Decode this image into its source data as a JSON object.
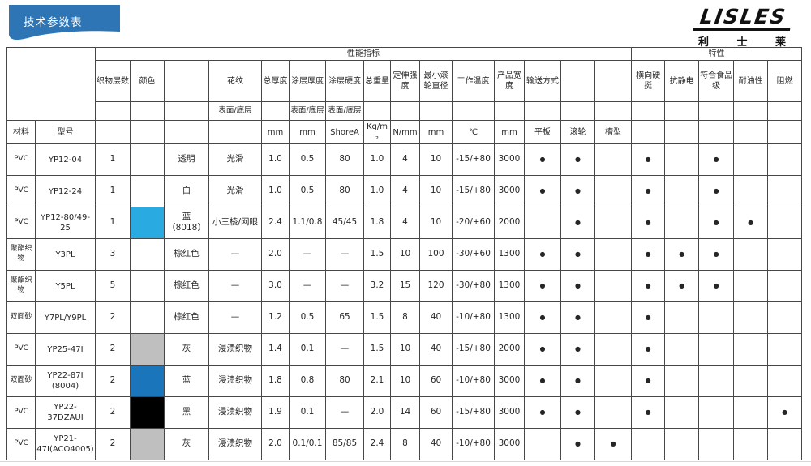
{
  "page": {
    "banner_title": "技术参数表",
    "brand_color": "#2E75B5",
    "logo": {
      "wordmark": "LISLES",
      "subtitle": "利 士 莱"
    }
  },
  "table": {
    "group_headers": {
      "performance": "性能指标",
      "features": "特性"
    },
    "columns": {
      "material": "材料",
      "model": "型号",
      "fabric_layers": "织物层数",
      "color": "颜色",
      "pattern": "花纹",
      "total_thickness": "总厚度",
      "coating_thickness": "涂层厚度",
      "coating_hardness": "涂层硬度",
      "total_weight": "总重量",
      "tensile_strength": "定伸强度",
      "min_roller_diameter": "最小滚轮直径",
      "working_temperature": "工作温度",
      "product_width": "产品宽度",
      "conveying_method": "输送方式",
      "lateral_stiffness": "横向硬挺",
      "anti_static": "抗静电",
      "food_grade": "符合食品级",
      "oil_resistant": "耐油性",
      "flame_retardant": "阻燃"
    },
    "sub_headers": {
      "surface_bottom": "表面/底层"
    },
    "units": {
      "mm": "mm",
      "shore": "ShoreA",
      "kg_per_m2": "Kg/m₂",
      "n_per_mm": "N/mm",
      "celsius": "℃",
      "flat": "平板",
      "roller": "滚轮",
      "trough": "槽型"
    },
    "swatch_colors": {
      "cyan": "#29ABE2",
      "blue": "#1B75BB",
      "black": "#000000",
      "gray": "#BFBFBF"
    },
    "rows": [
      {
        "material": "PVC",
        "model": "YP12-04",
        "layers": "1",
        "swatch": "",
        "color_name": "透明",
        "pattern": "光滑",
        "total_thickness": "1.0",
        "coating_thickness": "0.5",
        "coating_hardness": "80",
        "weight": "1.0",
        "strength": "4",
        "min_roller": "10",
        "temp": "-15/+80",
        "width": "3000",
        "flat": "●",
        "roller": "●",
        "trough": "",
        "stiff": "●",
        "antistatic": "",
        "food": "●",
        "oil": "",
        "flame": ""
      },
      {
        "material": "PVC",
        "model": "YP12-24",
        "layers": "1",
        "swatch": "",
        "color_name": "白",
        "pattern": "光滑",
        "total_thickness": "1.0",
        "coating_thickness": "0.5",
        "coating_hardness": "80",
        "weight": "1.0",
        "strength": "4",
        "min_roller": "10",
        "temp": "-15/+80",
        "width": "3000",
        "flat": "●",
        "roller": "●",
        "trough": "",
        "stiff": "●",
        "antistatic": "",
        "food": "●",
        "oil": "",
        "flame": ""
      },
      {
        "material": "PVC",
        "model": "YP12-80/49-25",
        "layers": "1",
        "swatch": "#29ABE2",
        "color_name": "蓝（8018）",
        "pattern": "小三棱/网眼",
        "total_thickness": "2.4",
        "coating_thickness": "1.1/0.8",
        "coating_hardness": "45/45",
        "weight": "1.8",
        "strength": "4",
        "min_roller": "10",
        "temp": "-20/+60",
        "width": "2000",
        "flat": "",
        "roller": "●",
        "trough": "",
        "stiff": "●",
        "antistatic": "",
        "food": "●",
        "oil": "●",
        "flame": ""
      },
      {
        "material": "聚酯织物",
        "model": "Y3PL",
        "layers": "3",
        "swatch": "",
        "color_name": "棕红色",
        "pattern": "—",
        "total_thickness": "2.0",
        "coating_thickness": "—",
        "coating_hardness": "—",
        "weight": "1.5",
        "strength": "10",
        "min_roller": "100",
        "temp": "-30/+60",
        "width": "1300",
        "flat": "●",
        "roller": "●",
        "trough": "",
        "stiff": "●",
        "antistatic": "●",
        "food": "●",
        "oil": "",
        "flame": ""
      },
      {
        "material": "聚酯织物",
        "model": "Y5PL",
        "layers": "5",
        "swatch": "",
        "color_name": "棕红色",
        "pattern": "—",
        "total_thickness": "3.0",
        "coating_thickness": "—",
        "coating_hardness": "—",
        "weight": "3.2",
        "strength": "15",
        "min_roller": "120",
        "temp": "-30/+80",
        "width": "1300",
        "flat": "●",
        "roller": "●",
        "trough": "",
        "stiff": "●",
        "antistatic": "●",
        "food": "●",
        "oil": "",
        "flame": ""
      },
      {
        "material": "双面砂",
        "model": "Y7PL/Y9PL",
        "layers": "2",
        "swatch": "",
        "color_name": "棕红色",
        "pattern": "—",
        "total_thickness": "1.2",
        "coating_thickness": "0.5",
        "coating_hardness": "65",
        "weight": "1.5",
        "strength": "8",
        "min_roller": "40",
        "temp": "-10/+80",
        "width": "1300",
        "flat": "●",
        "roller": "●",
        "trough": "",
        "stiff": "●",
        "antistatic": "",
        "food": "",
        "oil": "",
        "flame": ""
      },
      {
        "material": "PVC",
        "model": "YP25-47I",
        "layers": "2",
        "swatch": "#BFBFBF",
        "color_name": "灰",
        "pattern": "浸渍织物",
        "total_thickness": "1.4",
        "coating_thickness": "0.1",
        "coating_hardness": "—",
        "weight": "1.5",
        "strength": "10",
        "min_roller": "40",
        "temp": "-15/+80",
        "width": "2000",
        "flat": "●",
        "roller": "●",
        "trough": "",
        "stiff": "●",
        "antistatic": "",
        "food": "",
        "oil": "",
        "flame": ""
      },
      {
        "material": "双面砂",
        "model": "YP22-87I (8004)",
        "layers": "2",
        "swatch": "#1B75BB",
        "color_name": "蓝",
        "pattern": "浸渍织物",
        "total_thickness": "1.8",
        "coating_thickness": "0.8",
        "coating_hardness": "80",
        "weight": "2.1",
        "strength": "10",
        "min_roller": "60",
        "temp": "-10/+80",
        "width": "3000",
        "flat": "●",
        "roller": "●",
        "trough": "",
        "stiff": "●",
        "antistatic": "",
        "food": "",
        "oil": "",
        "flame": ""
      },
      {
        "material": "PVC",
        "model": "YP22-37DZAUI",
        "layers": "2",
        "swatch": "#000000",
        "color_name": "黑",
        "pattern": "浸渍织物",
        "total_thickness": "1.9",
        "coating_thickness": "0.1",
        "coating_hardness": "—",
        "weight": "2.0",
        "strength": "14",
        "min_roller": "60",
        "temp": "-15/+80",
        "width": "3000",
        "flat": "●",
        "roller": "●",
        "trough": "",
        "stiff": "●",
        "antistatic": "",
        "food": "",
        "oil": "",
        "flame": "●"
      },
      {
        "material": "PVC",
        "model": "YP21-47I(ACO4005)",
        "layers": "2",
        "swatch": "#BFBFBF",
        "color_name": "灰",
        "pattern": "浸渍织物",
        "total_thickness": "2.0",
        "coating_thickness": "0.1/0.1",
        "coating_hardness": "85/85",
        "weight": "2.4",
        "strength": "8",
        "min_roller": "40",
        "temp": "-10/+80",
        "width": "3000",
        "flat": "",
        "roller": "●",
        "trough": "●",
        "stiff": "",
        "antistatic": "",
        "food": "",
        "oil": "",
        "flame": ""
      }
    ]
  }
}
